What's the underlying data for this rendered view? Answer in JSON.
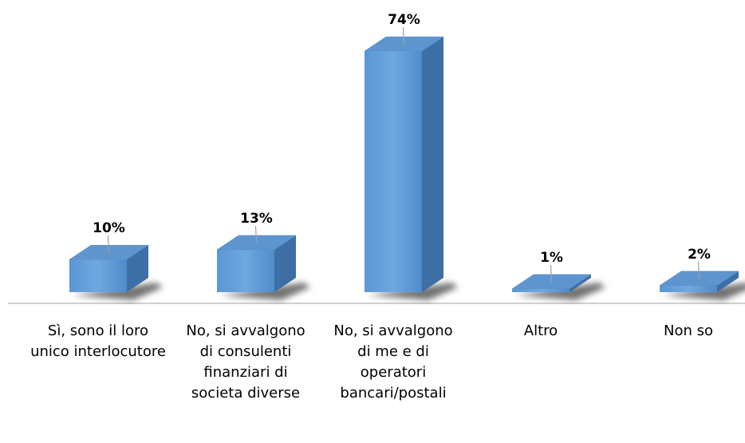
{
  "chart_data": {
    "type": "bar3d",
    "categories": [
      "Sì, sono il loro unico interlocutore",
      "No, si avvalgono di consulenti finanziari di societa diverse",
      "No, si avvalgono di me e di operatori bancari/postali",
      "Altro",
      "Non so"
    ],
    "values": [
      10,
      13,
      74,
      1,
      2
    ],
    "value_labels": [
      "10%",
      "13%",
      "74%",
      "1%",
      "2%"
    ],
    "color": "#5b9bd5"
  }
}
